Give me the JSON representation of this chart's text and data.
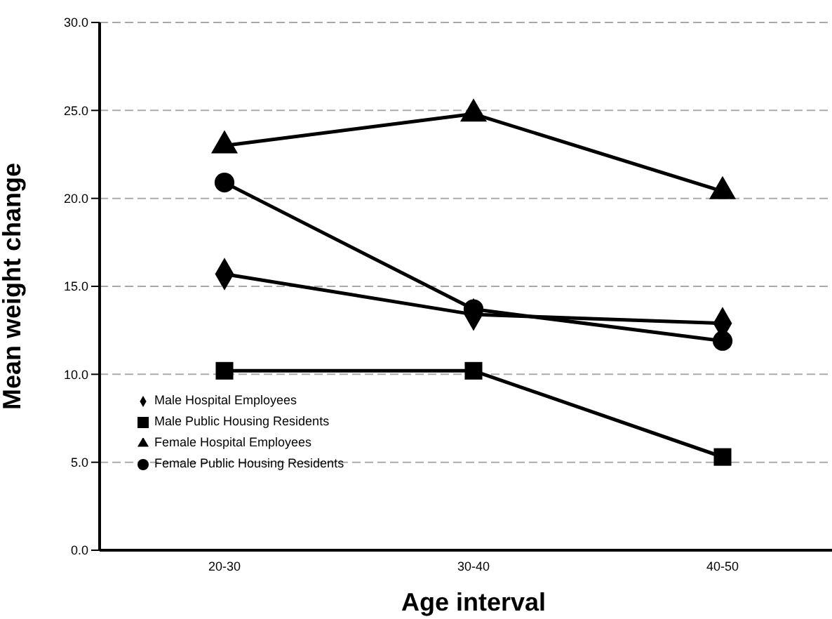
{
  "chart_data": {
    "type": "line",
    "xlabel": "Age interval",
    "ylabel": "Mean weight change",
    "categories": [
      "20-30",
      "30-40",
      "40-50"
    ],
    "series": [
      {
        "name": "Male Hospital Employees",
        "color": "#000000",
        "marker": "diamond",
        "values": [
          15.7,
          13.4,
          12.9
        ]
      },
      {
        "name": "Male Public Housing Residents",
        "color": "#000000",
        "marker": "square",
        "values": [
          10.2,
          10.2,
          5.3
        ]
      },
      {
        "name": "Female Hospital Employees",
        "color": "#000000",
        "marker": "triangle",
        "values": [
          23.0,
          24.8,
          20.4
        ]
      },
      {
        "name": "Female Public Housing Residents",
        "color": "#000000",
        "marker": "circle",
        "values": [
          20.9,
          13.7,
          11.9
        ]
      }
    ],
    "ylim": [
      0,
      30
    ],
    "yticks": [
      {
        "value": 0,
        "label": "0.0"
      },
      {
        "value": 5,
        "label": "5.0"
      },
      {
        "value": 10,
        "label": "10.0"
      },
      {
        "value": 15,
        "label": "15.0"
      },
      {
        "value": 20,
        "label": "20.0"
      },
      {
        "value": 25,
        "label": "25.0"
      },
      {
        "value": 30,
        "label": "30.0"
      }
    ],
    "grid": "y",
    "legend": "bottom left",
    "line_style": "solid"
  }
}
